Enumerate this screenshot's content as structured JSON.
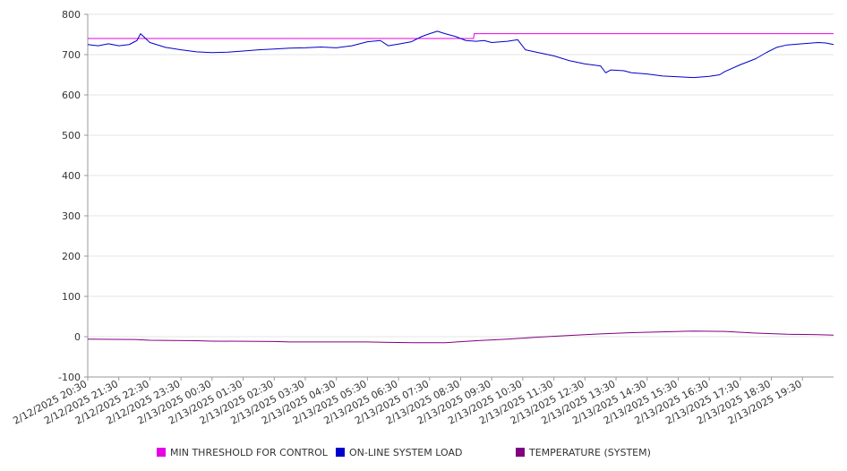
{
  "chart_data": {
    "type": "line",
    "title": "",
    "xlabel": "",
    "ylabel": "",
    "ylim": [
      -100,
      800
    ],
    "yticks": [
      "800",
      "700",
      "600",
      "500",
      "400",
      "300",
      "200",
      "100",
      "0",
      "-100"
    ],
    "xticks": [
      "2/12/2025 20:30",
      "2/12/2025 21:30",
      "2/12/2025 22:30",
      "2/12/2025 23:30",
      "2/13/2025 00:30",
      "2/13/2025 01:30",
      "2/13/2025 02:30",
      "2/13/2025 03:30",
      "2/13/2025 04:30",
      "2/13/2025 05:30",
      "2/13/2025 06:30",
      "2/13/2025 07:30",
      "2/13/2025 08:30",
      "2/13/2025 09:30",
      "2/13/2025 10:30",
      "2/13/2025 11:30",
      "2/13/2025 12:30",
      "2/13/2025 13:30",
      "2/13/2025 14:30",
      "2/13/2025 15:30",
      "2/13/2025 16:30",
      "2/13/2025 17:30",
      "2/13/2025 18:30",
      "2/13/2025 19:30"
    ],
    "grid": true,
    "legend_position": "bottom",
    "series": [
      {
        "name": "MIN THRESHOLD FOR CONTROL",
        "color": "#e600e6",
        "points": [
          [
            "2/12/2025 20:30",
            740
          ],
          [
            "2/13/2025 08:55",
            740
          ],
          [
            "2/13/2025 08:56",
            752
          ],
          [
            "2/13/2025 20:30",
            752
          ]
        ]
      },
      {
        "name": "ON-LINE SYSTEM LOAD",
        "color": "#0000cc",
        "points": [
          [
            "2/12/2025 20:30",
            725
          ],
          [
            "2/12/2025 20:50",
            722
          ],
          [
            "2/12/2025 21:10",
            727
          ],
          [
            "2/12/2025 21:30",
            722
          ],
          [
            "2/12/2025 21:50",
            725
          ],
          [
            "2/12/2025 22:05",
            735
          ],
          [
            "2/12/2025 22:12",
            752
          ],
          [
            "2/12/2025 22:30",
            730
          ],
          [
            "2/12/2025 23:00",
            718
          ],
          [
            "2/12/2025 23:30",
            712
          ],
          [
            "2/13/2025 00:00",
            707
          ],
          [
            "2/13/2025 00:30",
            705
          ],
          [
            "2/13/2025 01:00",
            706
          ],
          [
            "2/13/2025 01:30",
            709
          ],
          [
            "2/13/2025 02:00",
            712
          ],
          [
            "2/13/2025 02:30",
            714
          ],
          [
            "2/13/2025 03:00",
            716
          ],
          [
            "2/13/2025 03:30",
            717
          ],
          [
            "2/13/2025 04:00",
            719
          ],
          [
            "2/13/2025 04:30",
            717
          ],
          [
            "2/13/2025 05:00",
            722
          ],
          [
            "2/13/2025 05:30",
            732
          ],
          [
            "2/13/2025 05:55",
            735
          ],
          [
            "2/13/2025 06:10",
            722
          ],
          [
            "2/13/2025 06:30",
            726
          ],
          [
            "2/13/2025 06:55",
            732
          ],
          [
            "2/13/2025 07:15",
            745
          ],
          [
            "2/13/2025 07:30",
            752
          ],
          [
            "2/13/2025 07:45",
            758
          ],
          [
            "2/13/2025 08:00",
            752
          ],
          [
            "2/13/2025 08:20",
            745
          ],
          [
            "2/13/2025 08:40",
            735
          ],
          [
            "2/13/2025 09:00",
            733
          ],
          [
            "2/13/2025 09:15",
            735
          ],
          [
            "2/13/2025 09:30",
            730
          ],
          [
            "2/13/2025 10:00",
            733
          ],
          [
            "2/13/2025 10:20",
            737
          ],
          [
            "2/13/2025 10:35",
            712
          ],
          [
            "2/13/2025 11:00",
            705
          ],
          [
            "2/13/2025 11:30",
            697
          ],
          [
            "2/13/2025 12:00",
            685
          ],
          [
            "2/13/2025 12:30",
            677
          ],
          [
            "2/13/2025 13:00",
            672
          ],
          [
            "2/13/2025 13:10",
            655
          ],
          [
            "2/13/2025 13:20",
            662
          ],
          [
            "2/13/2025 13:45",
            660
          ],
          [
            "2/13/2025 14:00",
            655
          ],
          [
            "2/13/2025 14:30",
            652
          ],
          [
            "2/13/2025 15:00",
            647
          ],
          [
            "2/13/2025 15:30",
            645
          ],
          [
            "2/13/2025 16:00",
            643
          ],
          [
            "2/13/2025 16:30",
            646
          ],
          [
            "2/13/2025 16:50",
            650
          ],
          [
            "2/13/2025 17:00",
            658
          ],
          [
            "2/13/2025 17:30",
            675
          ],
          [
            "2/13/2025 18:00",
            690
          ],
          [
            "2/13/2025 18:20",
            705
          ],
          [
            "2/13/2025 18:40",
            718
          ],
          [
            "2/13/2025 19:00",
            724
          ],
          [
            "2/13/2025 19:30",
            727
          ],
          [
            "2/13/2025 20:00",
            730
          ],
          [
            "2/13/2025 20:15",
            729
          ],
          [
            "2/13/2025 20:30",
            725
          ]
        ]
      },
      {
        "name": "TEMPERATURE (SYSTEM)",
        "color": "#800080",
        "points": [
          [
            "2/12/2025 20:30",
            -6
          ],
          [
            "2/12/2025 22:00",
            -7
          ],
          [
            "2/12/2025 22:30",
            -9
          ],
          [
            "2/13/2025 00:00",
            -10
          ],
          [
            "2/13/2025 00:30",
            -11
          ],
          [
            "2/13/2025 02:30",
            -12
          ],
          [
            "2/13/2025 03:00",
            -13
          ],
          [
            "2/13/2025 05:30",
            -13
          ],
          [
            "2/13/2025 06:00",
            -14
          ],
          [
            "2/13/2025 07:00",
            -15
          ],
          [
            "2/13/2025 08:00",
            -15
          ],
          [
            "2/13/2025 09:00",
            -10
          ],
          [
            "2/13/2025 10:00",
            -6
          ],
          [
            "2/13/2025 11:00",
            -1
          ],
          [
            "2/13/2025 12:00",
            3
          ],
          [
            "2/13/2025 13:00",
            7
          ],
          [
            "2/13/2025 14:00",
            10
          ],
          [
            "2/13/2025 15:00",
            12
          ],
          [
            "2/13/2025 16:00",
            14
          ],
          [
            "2/13/2025 17:00",
            13
          ],
          [
            "2/13/2025 18:00",
            9
          ],
          [
            "2/13/2025 19:00",
            6
          ],
          [
            "2/13/2025 20:00",
            5
          ],
          [
            "2/13/2025 20:30",
            4
          ]
        ]
      }
    ]
  }
}
